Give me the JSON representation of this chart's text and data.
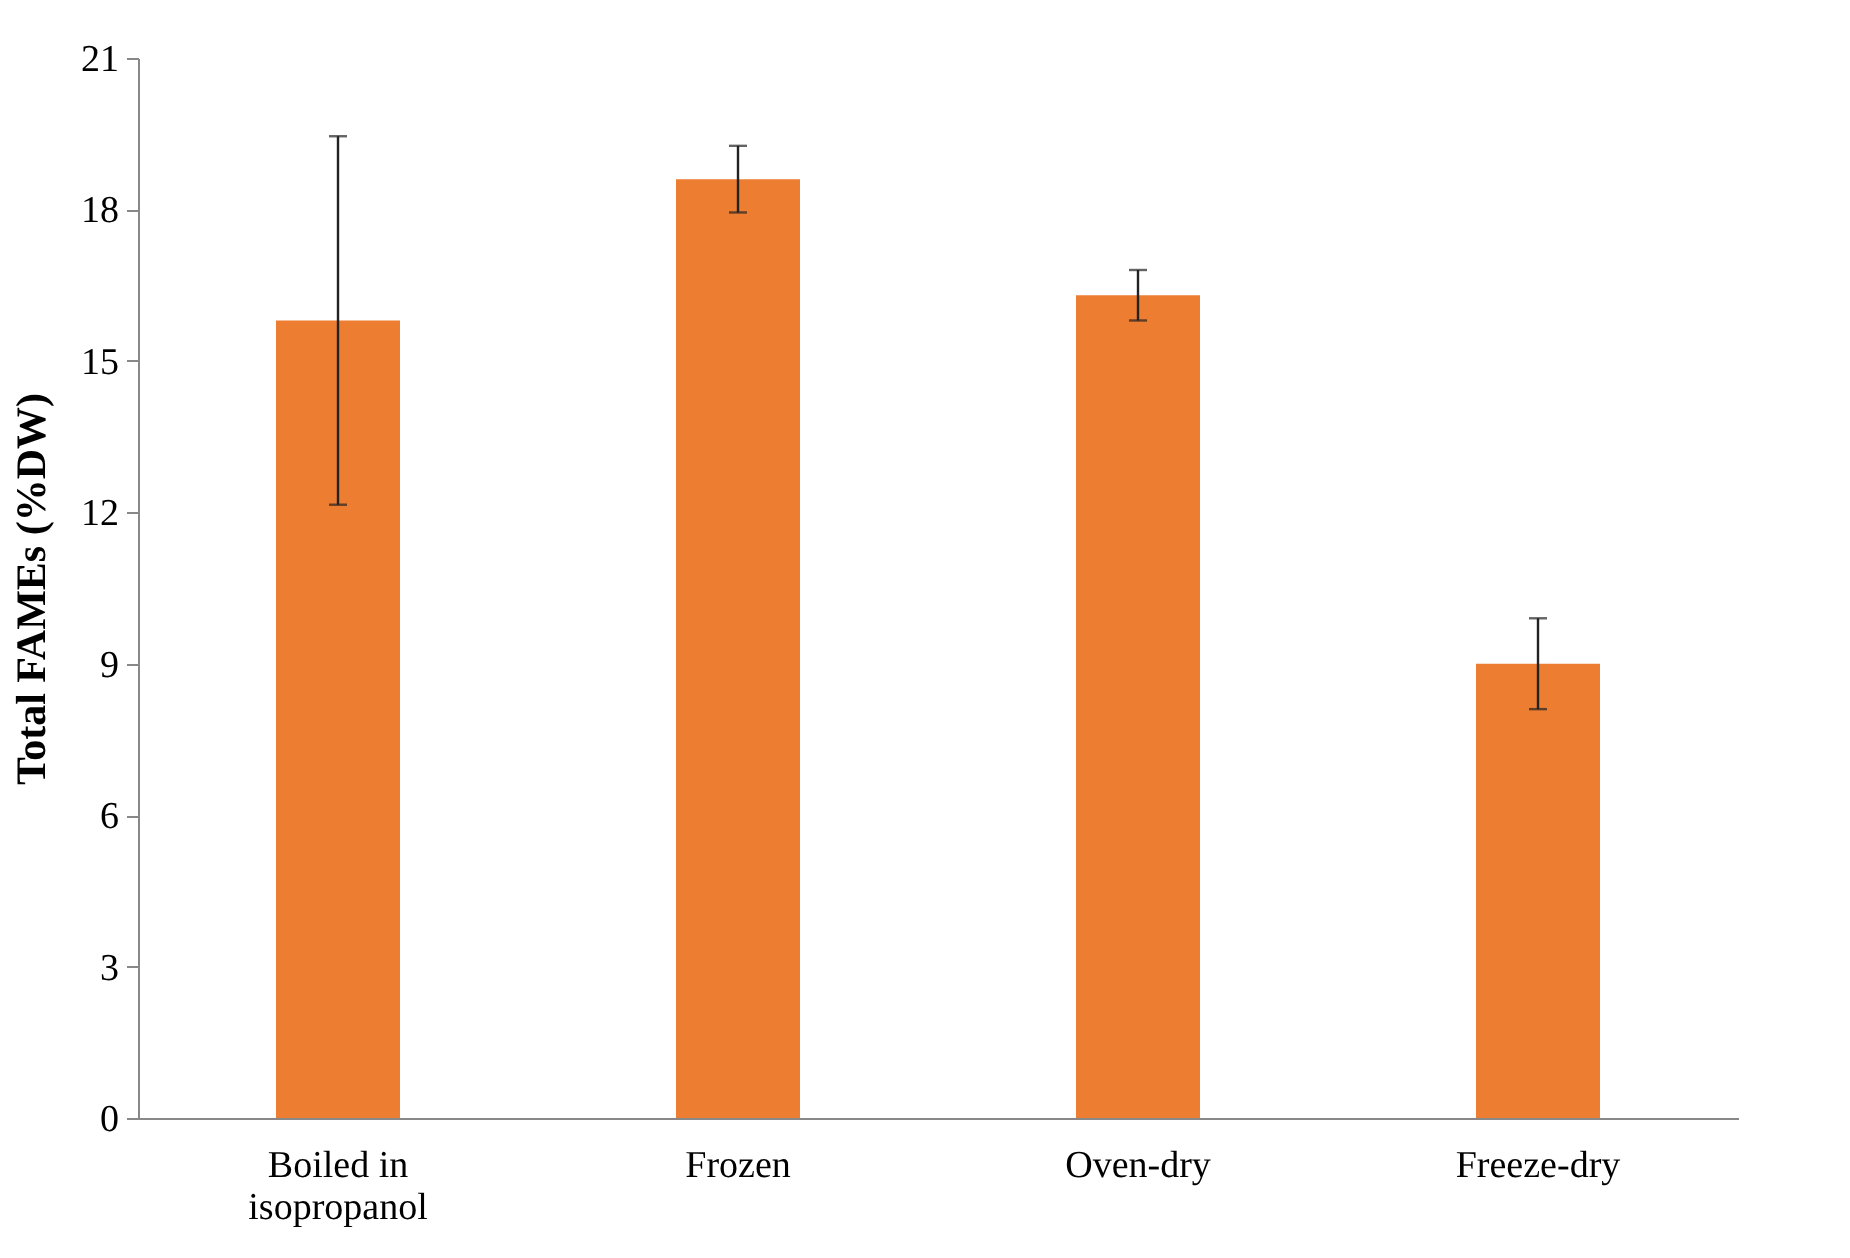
{
  "chart_data": {
    "type": "bar",
    "ylabel": "Total FAMEs (%DW)",
    "categories": [
      "Boiled in\nisopropanol",
      "Frozen",
      "Oven-dry",
      "Freeze-dry"
    ],
    "values": [
      15.8,
      18.6,
      16.3,
      9.0
    ],
    "errors": [
      3.65,
      0.66,
      0.5,
      0.9
    ],
    "color": "#ed7d31",
    "ylim": [
      0,
      21
    ],
    "yticks": [
      0,
      3,
      6,
      9,
      12,
      15,
      18,
      21
    ],
    "grid": false
  }
}
